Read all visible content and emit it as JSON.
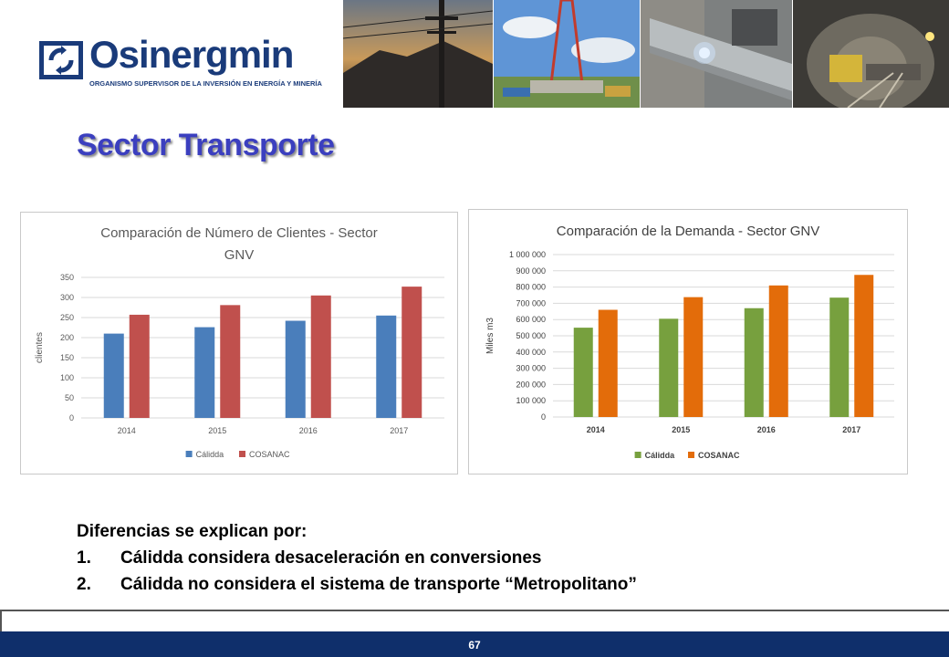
{
  "brand": {
    "name": "Osinergmin",
    "subtitle": "ORGANISMO SUPERVISOR DE LA INVERSIÓN EN ENERGÍA Y MINERÍA",
    "color": "#1a3b7a"
  },
  "slide": {
    "title": "Sector Transporte",
    "page_number": "67"
  },
  "notes": {
    "heading": "Diferencias se explican por:",
    "items": [
      {
        "num": "1.",
        "text": "Cálidda considera desaceleración en conversiones"
      },
      {
        "num": "2.",
        "text": "Cálidda no considera el sistema de transporte “Metropolitano”"
      }
    ]
  },
  "chart_data": [
    {
      "type": "bar",
      "title": "Comparación de Número de Clientes - Sector GNV",
      "title_lines": [
        "Comparación de Número de Clientes - Sector",
        "GNV"
      ],
      "ylabel": "clientes",
      "xlabel": "",
      "categories": [
        "2014",
        "2015",
        "2016",
        "2017"
      ],
      "ylim": [
        0,
        350
      ],
      "yticks": [
        "0",
        "50",
        "100",
        "150",
        "200",
        "250",
        "300",
        "350"
      ],
      "grid": true,
      "legend_position": "bottom",
      "series": [
        {
          "name": "Cálidda",
          "color": "#4a7ebb",
          "values": [
            210,
            226,
            242,
            255
          ]
        },
        {
          "name": "COSANAC",
          "color": "#c0504d",
          "values": [
            257,
            281,
            305,
            327
          ]
        }
      ]
    },
    {
      "type": "bar",
      "title": "Comparación de la Demanda - Sector GNV",
      "title_lines": [
        "Comparación de la Demanda - Sector GNV"
      ],
      "ylabel": "Miles m3",
      "xlabel": "",
      "categories": [
        "2014",
        "2015",
        "2016",
        "2017"
      ],
      "ylim": [
        0,
        1000000
      ],
      "yticks": [
        "0",
        "100 000",
        "200 000",
        "300 000",
        "400 000",
        "500 000",
        "600 000",
        "700 000",
        "800 000",
        "900 000",
        "1 000 000"
      ],
      "grid": true,
      "legend_position": "bottom",
      "series": [
        {
          "name": "Cálidda",
          "color": "#77a03e",
          "values": [
            550000,
            605000,
            670000,
            735000
          ]
        },
        {
          "name": "COSANAC",
          "color": "#e36c0a",
          "values": [
            660000,
            738000,
            810000,
            875000
          ]
        }
      ]
    }
  ]
}
